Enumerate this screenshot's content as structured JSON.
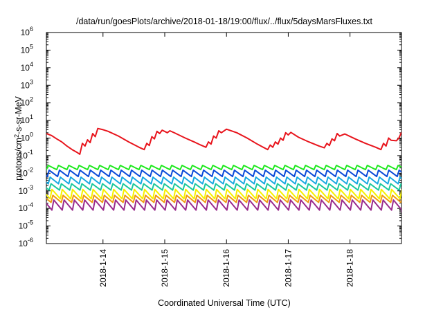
{
  "chart_data": {
    "type": "line",
    "title": "/data/run/goesPlots/archive/2018-01-18/19:00/flux/../flux/5daysMarsFluxes.txt",
    "xlabel": "Coordinated Universal Time (UTC)",
    "ylabel": "protons/cm²-s-sr-MeV",
    "ylabel_parts": {
      "pre": "protons/cm",
      "sup": "2",
      "post": "-s-sr-MeV"
    },
    "y_scale": "log",
    "ylim": [
      1e-06,
      1000000.0
    ],
    "y_ticks": [
      {
        "value": 1e-06,
        "base": "10",
        "exp": "-6"
      },
      {
        "value": 1e-05,
        "base": "10",
        "exp": "-5"
      },
      {
        "value": 0.0001,
        "base": "10",
        "exp": "-4"
      },
      {
        "value": 0.001,
        "base": "10",
        "exp": "-3"
      },
      {
        "value": 0.01,
        "base": "10",
        "exp": "-2"
      },
      {
        "value": 0.1,
        "base": "10",
        "exp": "-1"
      },
      {
        "value": 1,
        "base": "10",
        "exp": "0"
      },
      {
        "value": 10,
        "base": "10",
        "exp": "1"
      },
      {
        "value": 100,
        "base": "10",
        "exp": "2"
      },
      {
        "value": 1000,
        "base": "10",
        "exp": "3"
      },
      {
        "value": 10000,
        "base": "10",
        "exp": "4"
      },
      {
        "value": 100000,
        "base": "10",
        "exp": "5"
      },
      {
        "value": 1000000,
        "base": "10",
        "exp": "6"
      }
    ],
    "xlim": [
      "2018-01-13 02:00",
      "2018-01-18 20:00"
    ],
    "x_ticks": [
      {
        "value": "2018-01-14 00:00",
        "label": "2018-1-14"
      },
      {
        "value": "2018-01-15 00:00",
        "label": "2018-1-15"
      },
      {
        "value": "2018-01-16 00:00",
        "label": "2018-1-16"
      },
      {
        "value": "2018-01-17 00:00",
        "label": "2018-1-17"
      },
      {
        "value": "2018-01-18 00:00",
        "label": "2018-1-18"
      }
    ],
    "grid": false,
    "legend": "none",
    "series": [
      {
        "color": "#e8141c",
        "points": [
          [
            "2018-01-13 02:00",
            1.8
          ],
          [
            "2018-01-13 04:00",
            1.4
          ],
          [
            "2018-01-13 06:00",
            0.9
          ],
          [
            "2018-01-13 08:00",
            0.6
          ],
          [
            "2018-01-13 10:00",
            0.35
          ],
          [
            "2018-01-13 12:00",
            0.22
          ],
          [
            "2018-01-13 14:00",
            0.15
          ],
          [
            "2018-01-13 15:00",
            0.12
          ],
          [
            "2018-01-13 16:00",
            0.5
          ],
          [
            "2018-01-13 17:00",
            0.35
          ],
          [
            "2018-01-13 18:00",
            0.8
          ],
          [
            "2018-01-13 19:00",
            0.55
          ],
          [
            "2018-01-13 20:00",
            1.8
          ],
          [
            "2018-01-13 21:00",
            1.2
          ],
          [
            "2018-01-13 22:00",
            3.5
          ],
          [
            "2018-01-14 00:00",
            3.0
          ],
          [
            "2018-01-14 02:00",
            2.4
          ],
          [
            "2018-01-14 06:00",
            1.3
          ],
          [
            "2018-01-14 10:00",
            0.6
          ],
          [
            "2018-01-14 14:00",
            0.3
          ],
          [
            "2018-01-14 16:00",
            0.22
          ],
          [
            "2018-01-14 17:00",
            0.5
          ],
          [
            "2018-01-14 18:00",
            0.38
          ],
          [
            "2018-01-14 19:00",
            1.2
          ],
          [
            "2018-01-14 20:00",
            0.9
          ],
          [
            "2018-01-14 21:00",
            2.4
          ],
          [
            "2018-01-14 22:00",
            1.8
          ],
          [
            "2018-01-14 23:00",
            2.8
          ],
          [
            "2018-01-15 01:00",
            2.0
          ],
          [
            "2018-01-15 02:00",
            2.6
          ],
          [
            "2018-01-15 04:00",
            1.9
          ],
          [
            "2018-01-15 08:00",
            1.0
          ],
          [
            "2018-01-15 12:00",
            0.55
          ],
          [
            "2018-01-15 14:00",
            0.4
          ],
          [
            "2018-01-15 16:00",
            0.3
          ],
          [
            "2018-01-15 17:00",
            0.6
          ],
          [
            "2018-01-15 18:00",
            0.45
          ],
          [
            "2018-01-15 19:00",
            1.3
          ],
          [
            "2018-01-15 20:00",
            1.0
          ],
          [
            "2018-01-15 21:00",
            2.6
          ],
          [
            "2018-01-15 22:00",
            2.0
          ],
          [
            "2018-01-16 00:00",
            3.2
          ],
          [
            "2018-01-16 04:00",
            2.0
          ],
          [
            "2018-01-16 08:00",
            1.0
          ],
          [
            "2018-01-16 12:00",
            0.45
          ],
          [
            "2018-01-16 16:00",
            0.22
          ],
          [
            "2018-01-16 17:00",
            0.4
          ],
          [
            "2018-01-16 18:00",
            0.3
          ],
          [
            "2018-01-16 19:00",
            0.6
          ],
          [
            "2018-01-16 20:00",
            0.45
          ],
          [
            "2018-01-16 21:00",
            1.0
          ],
          [
            "2018-01-16 22:00",
            0.75
          ],
          [
            "2018-01-16 23:00",
            2.0
          ],
          [
            "2018-01-17 00:00",
            1.5
          ],
          [
            "2018-01-17 01:00",
            2.1
          ],
          [
            "2018-01-17 04:00",
            1.1
          ],
          [
            "2018-01-17 08:00",
            0.6
          ],
          [
            "2018-01-17 12:00",
            0.35
          ],
          [
            "2018-01-17 14:00",
            0.28
          ],
          [
            "2018-01-17 15:00",
            0.5
          ],
          [
            "2018-01-17 16:00",
            0.38
          ],
          [
            "2018-01-17 17:00",
            0.9
          ],
          [
            "2018-01-17 18:00",
            0.7
          ],
          [
            "2018-01-17 19:00",
            1.8
          ],
          [
            "2018-01-17 20:00",
            1.3
          ],
          [
            "2018-01-17 22:00",
            1.7
          ],
          [
            "2018-01-18 02:00",
            0.9
          ],
          [
            "2018-01-18 06:00",
            0.5
          ],
          [
            "2018-01-18 10:00",
            0.3
          ],
          [
            "2018-01-18 12:00",
            0.22
          ],
          [
            "2018-01-18 13:00",
            0.5
          ],
          [
            "2018-01-18 14:00",
            0.35
          ],
          [
            "2018-01-18 15:00",
            1.0
          ],
          [
            "2018-01-18 16:00",
            0.75
          ],
          [
            "2018-01-18 18:00",
            0.7
          ],
          [
            "2018-01-18 19:00",
            1.0
          ],
          [
            "2018-01-18 20:00",
            2.1
          ]
        ]
      },
      {
        "color": "#1ee81e",
        "pattern": {
          "peak": 0.028,
          "trough": 0.016,
          "peaks_per_day": 6,
          "end_value": 0.012
        }
      },
      {
        "color": "#0a4ad8",
        "pattern": {
          "peak": 0.015,
          "trough": 0.0065,
          "peaks_per_day": 6,
          "end_value": 0.0045
        }
      },
      {
        "color": "#16a8e0",
        "pattern": {
          "peak": 0.006,
          "trough": 0.0025,
          "peaks_per_day": 6,
          "end_value": 0.002
        }
      },
      {
        "color": "#1cc89c",
        "pattern": {
          "peak": 0.0025,
          "trough": 0.0011,
          "peaks_per_day": 6,
          "end_value": 0.0009
        }
      },
      {
        "color": "#f6f000",
        "pattern": {
          "peak": 0.0012,
          "trough": 0.00035,
          "peaks_per_day": 6,
          "end_value": 0.0003
        }
      },
      {
        "color": "#f09a10",
        "pattern": {
          "peak": 0.00055,
          "trough": 0.00022,
          "peaks_per_day": 6,
          "end_value": 0.00018
        }
      },
      {
        "color": "#9a2a8c",
        "pattern": {
          "peak": 0.0003,
          "trough": 8e-05,
          "peaks_per_day": 6,
          "end_value": 6e-05
        }
      }
    ]
  }
}
